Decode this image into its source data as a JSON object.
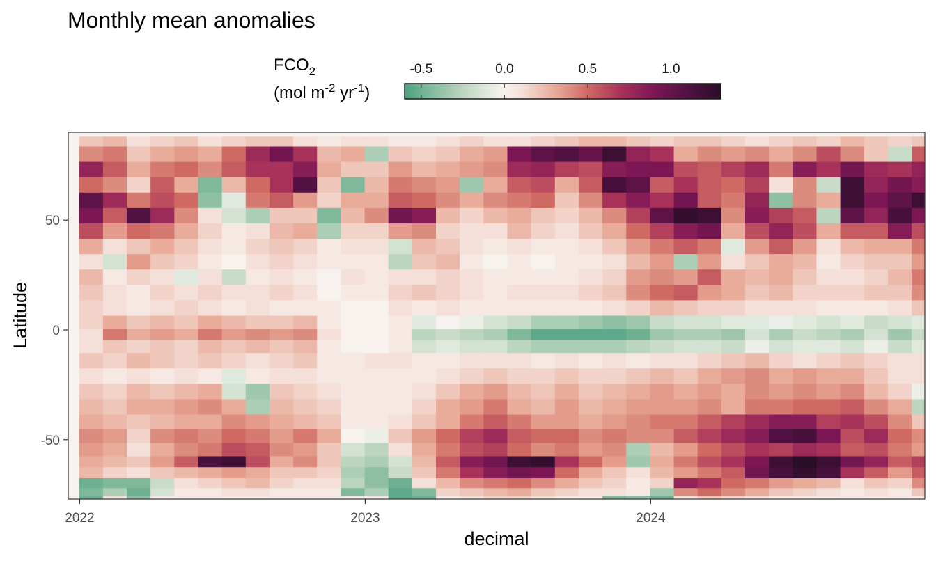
{
  "chart_data": {
    "type": "heatmap",
    "title": "Monthly mean anomalies",
    "xlabel": "decimal",
    "ylabel": "Latitude",
    "x_ticks": [
      {
        "value": 2022,
        "label": "2022"
      },
      {
        "value": 2023,
        "label": "2023"
      },
      {
        "value": 2024,
        "label": "2024"
      }
    ],
    "y_ticks": [
      {
        "value": 50,
        "label": "50"
      },
      {
        "value": 0,
        "label": "0"
      },
      {
        "value": -50,
        "label": "-50"
      }
    ],
    "xlim": [
      2021.96,
      2024.96
    ],
    "ylim": [
      -77,
      90
    ],
    "x_start": 2022.04,
    "x_step": 0.0833,
    "months": 36,
    "lat_range": [
      -77,
      88
    ],
    "grid": false,
    "legend": {
      "title_main": "FCO",
      "title_sub": "2",
      "unit_parts": {
        "a": "(mol m",
        "b": "-2",
        "c": " yr",
        "d": "-1",
        "e": ")"
      },
      "range": [
        -0.6,
        1.3
      ],
      "ticks": [
        {
          "value": -0.5,
          "label": "-0.5"
        },
        {
          "value": 0.0,
          "label": "0.0"
        },
        {
          "value": 0.5,
          "label": "0.5"
        },
        {
          "value": 1.0,
          "label": "1.0"
        }
      ],
      "color_stops": [
        {
          "value": -0.6,
          "color": "#4da180"
        },
        {
          "value": -0.45,
          "color": "#7fb89a"
        },
        {
          "value": -0.25,
          "color": "#bcd5bf"
        },
        {
          "value": -0.05,
          "color": "#ecefe7"
        },
        {
          "value": 0.0,
          "color": "#f7f2ee"
        },
        {
          "value": 0.1,
          "color": "#f4e0d9"
        },
        {
          "value": 0.3,
          "color": "#e9ab9a"
        },
        {
          "value": 0.5,
          "color": "#cf6a63"
        },
        {
          "value": 0.7,
          "color": "#a8325a"
        },
        {
          "value": 0.9,
          "color": "#7c1655"
        },
        {
          "value": 1.1,
          "color": "#521143"
        },
        {
          "value": 1.3,
          "color": "#2a0d27"
        }
      ]
    },
    "bands": [
      {
        "lat": 87,
        "values": [
          0.2,
          0.25,
          0.1,
          0.15,
          0.2,
          0.1,
          0.15,
          0.2,
          0.2,
          0.1,
          0.05,
          0.1,
          0.1,
          0.05,
          0.05,
          0.1,
          0.15,
          0.1,
          0.1,
          0.15,
          0.2,
          0.25,
          0.25,
          0.2,
          0.15,
          0.2,
          0.2,
          0.15,
          0.1,
          0.15,
          0.2,
          0.15,
          0.25,
          0.2,
          0.15,
          0.2
        ]
      },
      {
        "lat": 80,
        "values": [
          0.4,
          0.45,
          0.2,
          0.3,
          0.35,
          0.3,
          0.5,
          0.75,
          0.95,
          0.7,
          0.25,
          0.3,
          -0.3,
          0.2,
          0.15,
          0.2,
          0.3,
          0.35,
          0.9,
          1.05,
          1.1,
          1.0,
          1.2,
          0.8,
          0.7,
          0.3,
          0.4,
          0.35,
          0.4,
          0.3,
          0.4,
          0.6,
          0.4,
          0.2,
          -0.2,
          0.55
        ]
      },
      {
        "lat": 73,
        "values": [
          0.8,
          0.55,
          0.3,
          0.45,
          0.5,
          0.4,
          0.55,
          0.7,
          0.7,
          0.85,
          0.3,
          0.2,
          0.2,
          0.35,
          0.25,
          0.3,
          0.35,
          0.4,
          0.75,
          0.8,
          0.65,
          0.6,
          0.85,
          0.9,
          0.9,
          0.6,
          0.55,
          0.65,
          0.75,
          0.45,
          0.85,
          0.7,
          0.95,
          0.75,
          0.7,
          0.8
        ]
      },
      {
        "lat": 66,
        "values": [
          0.5,
          0.4,
          0.15,
          0.55,
          0.3,
          -0.45,
          0.25,
          0.5,
          0.7,
          1.1,
          0.2,
          -0.45,
          0.25,
          0.45,
          0.4,
          0.35,
          -0.35,
          0.3,
          0.55,
          0.6,
          0.3,
          0.55,
          1.15,
          1.05,
          0.55,
          0.7,
          0.55,
          0.5,
          0.65,
          0.1,
          0.4,
          -0.2,
          1.2,
          0.8,
          0.95,
          0.85
        ]
      },
      {
        "lat": 59,
        "values": [
          1.05,
          0.75,
          0.45,
          0.6,
          0.5,
          -0.4,
          -0.1,
          0.45,
          0.55,
          0.35,
          0.15,
          0.3,
          0.3,
          0.55,
          0.5,
          0.4,
          0.3,
          0.4,
          0.45,
          0.5,
          0.2,
          0.4,
          0.7,
          0.85,
          0.7,
          0.95,
          0.55,
          0.45,
          0.8,
          -0.4,
          0.4,
          0.3,
          1.2,
          0.9,
          1.05,
          1.2
        ]
      },
      {
        "lat": 52,
        "values": [
          0.9,
          0.55,
          1.1,
          0.75,
          0.4,
          0.1,
          -0.15,
          -0.3,
          0.2,
          0.2,
          -0.45,
          0.25,
          0.4,
          0.95,
          0.85,
          0.25,
          0.15,
          0.25,
          0.3,
          0.2,
          0.15,
          0.25,
          0.4,
          0.65,
          1.05,
          1.25,
          1.2,
          0.4,
          0.85,
          0.65,
          0.55,
          -0.25,
          1.05,
          0.8,
          1.15,
          0.9
        ]
      },
      {
        "lat": 45,
        "values": [
          0.6,
          0.35,
          0.5,
          0.45,
          0.3,
          0.15,
          0.05,
          0.1,
          0.25,
          0.3,
          -0.3,
          0.15,
          0.15,
          0.35,
          0.4,
          0.15,
          0.1,
          0.1,
          0.25,
          0.15,
          0.1,
          0.2,
          0.3,
          0.5,
          0.65,
          0.85,
          0.95,
          0.3,
          0.6,
          0.8,
          0.6,
          0.3,
          0.55,
          0.55,
          0.85,
          0.6
        ]
      },
      {
        "lat": 38,
        "values": [
          0.3,
          0.1,
          0.2,
          0.3,
          0.2,
          0.1,
          0.05,
          0.15,
          0.2,
          0.15,
          0.05,
          0.1,
          0.1,
          -0.15,
          0.25,
          0.2,
          0.1,
          0.05,
          0.1,
          0.05,
          0.05,
          0.1,
          0.2,
          0.35,
          0.45,
          0.55,
          0.45,
          -0.1,
          0.35,
          0.55,
          0.35,
          0.1,
          0.25,
          0.3,
          0.3,
          0.45
        ]
      },
      {
        "lat": 31,
        "values": [
          0.1,
          -0.15,
          0.35,
          0.2,
          0.15,
          0.05,
          0.0,
          0.1,
          0.15,
          0.1,
          0.05,
          0.05,
          0.05,
          -0.25,
          0.2,
          0.25,
          0.05,
          0.0,
          0.05,
          0.0,
          0.05,
          0.05,
          0.1,
          0.25,
          0.35,
          -0.3,
          0.35,
          0.1,
          0.2,
          0.3,
          0.25,
          0.05,
          0.15,
          0.2,
          0.2,
          0.35
        ]
      },
      {
        "lat": 24,
        "values": [
          0.25,
          0.05,
          0.15,
          0.1,
          -0.1,
          0.1,
          -0.2,
          0.05,
          0.1,
          0.05,
          0.0,
          0.1,
          0.05,
          0.1,
          0.1,
          0.15,
          0.1,
          0.05,
          0.05,
          0.05,
          0.05,
          0.1,
          0.15,
          0.35,
          0.4,
          0.35,
          0.55,
          0.3,
          0.25,
          0.3,
          0.2,
          0.1,
          0.1,
          0.15,
          0.25,
          0.45
        ]
      },
      {
        "lat": 17,
        "values": [
          0.2,
          0.1,
          0.05,
          0.15,
          0.1,
          0.15,
          0.1,
          0.1,
          0.15,
          0.1,
          0.0,
          0.05,
          0.05,
          0.15,
          0.2,
          0.15,
          0.1,
          0.05,
          0.1,
          0.1,
          0.1,
          0.15,
          0.2,
          0.4,
          0.5,
          0.55,
          0.35,
          0.3,
          0.2,
          0.25,
          0.15,
          0.15,
          0.15,
          0.2,
          0.2,
          0.4
        ]
      },
      {
        "lat": 10,
        "values": [
          0.15,
          0.1,
          0.05,
          0.1,
          0.15,
          0.1,
          0.05,
          0.1,
          0.05,
          0.05,
          0.05,
          0.0,
          0.0,
          0.1,
          0.05,
          0.1,
          0.05,
          0.05,
          0.05,
          0.05,
          0.05,
          0.05,
          0.1,
          0.15,
          0.25,
          0.2,
          0.15,
          0.15,
          0.1,
          0.1,
          0.1,
          0.05,
          0.05,
          0.05,
          0.1,
          0.2
        ]
      },
      {
        "lat": 3,
        "values": [
          0.15,
          0.3,
          0.2,
          0.25,
          0.2,
          0.3,
          0.25,
          0.2,
          0.2,
          0.25,
          0.05,
          0.0,
          0.0,
          0.05,
          -0.1,
          0.0,
          -0.05,
          -0.15,
          -0.2,
          -0.3,
          -0.3,
          -0.35,
          -0.4,
          -0.35,
          -0.2,
          -0.15,
          -0.15,
          -0.1,
          -0.1,
          -0.05,
          -0.1,
          -0.15,
          -0.1,
          -0.2,
          -0.15,
          -0.1
        ]
      },
      {
        "lat": -2,
        "values": [
          0.1,
          0.45,
          0.3,
          0.35,
          0.3,
          0.45,
          0.35,
          0.4,
          0.35,
          0.4,
          0.1,
          0.0,
          0.0,
          0.05,
          -0.25,
          -0.2,
          -0.25,
          -0.3,
          -0.45,
          -0.55,
          -0.55,
          -0.55,
          -0.55,
          -0.5,
          -0.35,
          -0.3,
          -0.3,
          -0.35,
          -0.15,
          -0.3,
          -0.2,
          -0.25,
          -0.3,
          -0.15,
          -0.35,
          -0.2
        ]
      },
      {
        "lat": -7,
        "values": [
          0.1,
          0.2,
          0.15,
          0.2,
          0.15,
          0.25,
          0.2,
          0.25,
          0.2,
          0.25,
          0.05,
          0.0,
          0.0,
          0.05,
          -0.15,
          -0.1,
          -0.15,
          -0.15,
          -0.25,
          -0.3,
          -0.3,
          -0.3,
          -0.3,
          -0.25,
          -0.2,
          -0.15,
          -0.15,
          -0.2,
          -0.05,
          -0.15,
          -0.1,
          -0.1,
          -0.15,
          -0.05,
          -0.2,
          -0.1
        ]
      },
      {
        "lat": -14,
        "values": [
          0.2,
          0.15,
          0.25,
          0.2,
          0.15,
          0.2,
          0.15,
          0.1,
          0.15,
          0.2,
          0.05,
          0.05,
          0.1,
          0.1,
          0.05,
          0.05,
          0.1,
          0.1,
          0.1,
          0.05,
          0.1,
          0.05,
          0.1,
          0.05,
          0.1,
          0.1,
          0.15,
          0.2,
          0.25,
          0.15,
          0.1,
          0.15,
          0.2,
          0.15,
          0.1,
          0.1
        ]
      },
      {
        "lat": -21,
        "values": [
          0.1,
          0.05,
          0.1,
          0.05,
          0.1,
          0.05,
          -0.1,
          0.05,
          0.1,
          0.1,
          0.05,
          0.05,
          0.05,
          0.05,
          0.05,
          0.1,
          0.15,
          0.2,
          0.15,
          0.15,
          0.2,
          0.15,
          0.15,
          0.2,
          0.25,
          0.2,
          0.3,
          0.35,
          0.4,
          0.3,
          0.35,
          0.3,
          0.3,
          0.2,
          0.1,
          0.1
        ]
      },
      {
        "lat": -28,
        "values": [
          0.2,
          0.15,
          0.25,
          0.2,
          0.25,
          0.3,
          -0.15,
          -0.35,
          0.2,
          0.15,
          0.1,
          0.05,
          0.05,
          0.05,
          0.1,
          0.2,
          0.3,
          0.35,
          0.25,
          0.2,
          0.3,
          0.2,
          0.25,
          0.3,
          0.35,
          0.3,
          0.35,
          0.3,
          0.4,
          0.35,
          0.4,
          0.35,
          0.4,
          0.25,
          0.15,
          -0.05
        ]
      },
      {
        "lat": -35,
        "values": [
          0.25,
          0.2,
          0.3,
          0.3,
          0.35,
          0.4,
          0.3,
          -0.3,
          0.25,
          0.2,
          0.15,
          0.05,
          0.05,
          0.05,
          0.15,
          0.3,
          0.35,
          0.45,
          0.3,
          0.25,
          0.35,
          0.25,
          0.3,
          0.35,
          0.35,
          0.35,
          0.4,
          0.3,
          0.45,
          0.45,
          0.5,
          0.5,
          0.55,
          0.4,
          0.3,
          -0.25
        ]
      },
      {
        "lat": -42,
        "values": [
          0.3,
          0.25,
          0.2,
          0.25,
          0.3,
          0.3,
          0.4,
          0.35,
          0.3,
          0.25,
          0.2,
          0.05,
          0.05,
          0.1,
          0.2,
          0.3,
          0.45,
          0.55,
          0.45,
          0.35,
          0.35,
          0.3,
          0.35,
          0.4,
          0.45,
          0.45,
          0.55,
          0.65,
          0.75,
          0.85,
          0.85,
          0.65,
          0.7,
          0.6,
          0.4,
          0.2
        ]
      },
      {
        "lat": -48,
        "values": [
          0.4,
          0.35,
          0.15,
          0.4,
          0.45,
          0.4,
          0.5,
          0.45,
          0.35,
          0.45,
          0.3,
          0.0,
          -0.05,
          0.2,
          0.35,
          0.5,
          0.65,
          0.75,
          0.55,
          0.5,
          0.5,
          0.4,
          0.45,
          0.4,
          0.4,
          0.55,
          0.65,
          0.75,
          0.85,
          1.1,
          1.15,
          0.9,
          0.6,
          0.75,
          0.5,
          0.4
        ]
      },
      {
        "lat": -55,
        "values": [
          0.35,
          0.3,
          0.1,
          0.3,
          0.4,
          0.45,
          0.6,
          0.55,
          0.4,
          0.35,
          0.2,
          -0.15,
          -0.25,
          0.1,
          0.3,
          0.45,
          0.6,
          0.65,
          0.5,
          0.4,
          0.45,
          0.35,
          0.4,
          -0.3,
          0.25,
          0.35,
          0.5,
          0.6,
          0.7,
          0.65,
          0.75,
          0.7,
          0.55,
          0.6,
          0.45,
          0.35
        ]
      },
      {
        "lat": -60,
        "values": [
          0.3,
          0.25,
          0.2,
          0.35,
          0.55,
          1.15,
          1.2,
          0.6,
          0.3,
          0.4,
          0.2,
          -0.25,
          -0.3,
          -0.15,
          0.25,
          0.55,
          0.85,
          0.95,
          1.2,
          1.25,
          0.7,
          0.5,
          0.35,
          -0.35,
          0.3,
          0.45,
          0.6,
          0.7,
          0.9,
          1.2,
          1.3,
          1.2,
          0.95,
          0.8,
          0.55,
          0.65
        ]
      },
      {
        "lat": -65,
        "values": [
          0.25,
          0.15,
          0.1,
          0.2,
          0.25,
          0.3,
          0.35,
          0.3,
          0.2,
          0.2,
          0.15,
          -0.3,
          -0.4,
          -0.2,
          0.2,
          0.45,
          0.7,
          0.85,
          0.95,
          0.9,
          0.5,
          0.3,
          0.2,
          0.1,
          0.25,
          0.35,
          0.45,
          0.55,
          0.95,
          1.15,
          1.25,
          1.15,
          0.7,
          0.55,
          0.35,
          0.55
        ]
      },
      {
        "lat": -70,
        "values": [
          -0.5,
          -0.45,
          -0.45,
          -0.2,
          0.1,
          0.15,
          0.2,
          0.25,
          0.15,
          0.1,
          0.1,
          -0.25,
          -0.4,
          -0.5,
          0.1,
          0.25,
          0.4,
          0.45,
          0.5,
          0.4,
          0.3,
          0.2,
          0.15,
          0.05,
          0.15,
          0.8,
          0.7,
          0.5,
          0.45,
          0.35,
          0.3,
          0.25,
          0.1,
          0.2,
          0.15,
          0.4
        ]
      },
      {
        "lat": -74,
        "values": [
          -0.45,
          -0.3,
          -0.5,
          -0.15,
          0.05,
          0.05,
          0.1,
          0.1,
          0.05,
          0.05,
          0.05,
          -0.45,
          -0.3,
          -0.55,
          -0.45,
          0.15,
          0.2,
          0.25,
          0.3,
          0.2,
          0.15,
          0.1,
          0.1,
          0.05,
          -0.35,
          0.4,
          0.5,
          0.4,
          0.3,
          0.2,
          0.15,
          0.1,
          0.05,
          0.1,
          0.05,
          0.2
        ]
      },
      {
        "lat": -77,
        "values": [
          -0.5,
          0.1,
          -0.4,
          0.05,
          0.05,
          0.05,
          0.05,
          0.05,
          0.05,
          0.05,
          0.05,
          0.05,
          0.05,
          -0.55,
          -0.5,
          0.05,
          0.1,
          0.15,
          0.15,
          0.1,
          0.05,
          0.05,
          -0.45,
          -0.4,
          -0.5,
          0.1,
          0.2,
          0.15,
          0.1,
          0.05,
          0.05,
          0.05,
          0.05,
          0.05,
          0.05,
          0.05
        ]
      }
    ]
  }
}
